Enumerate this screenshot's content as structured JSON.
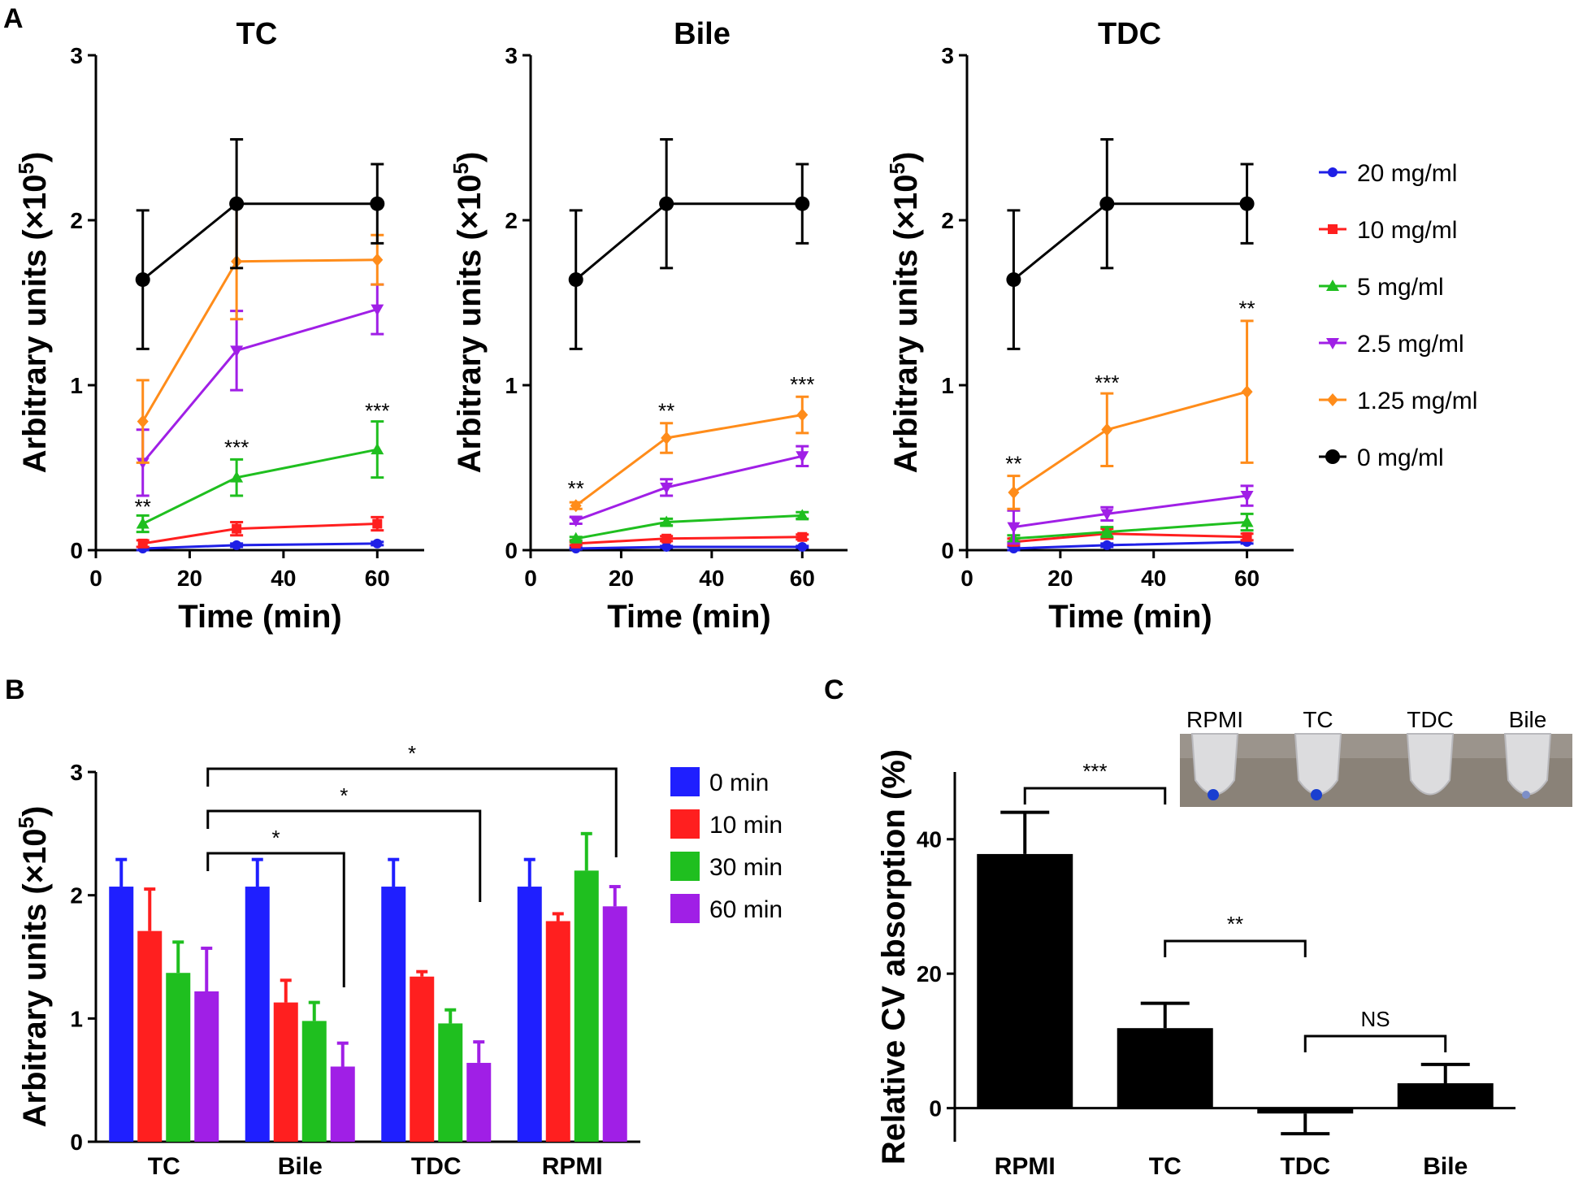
{
  "panels": {
    "a": "A",
    "b": "B",
    "c": "C"
  },
  "colors": {
    "20 mg/ml": "#1f1fe6",
    "10 mg/ml": "#ff1f1f",
    "5 mg/ml": "#1fbf1f",
    "2.5 mg/ml": "#a01fe6",
    "1.25 mg/ml": "#ff8c1a",
    "0 mg/ml": "#000000",
    "0 min": "#1f1fff",
    "10 min": "#ff1f1f",
    "30 min": "#1fbf1f",
    "60 min": "#a01fe6"
  },
  "chart_data": [
    {
      "type": "line",
      "title": "TC",
      "xlabel": "Time (min)",
      "ylabel": "Arbitrary units (×10⁵)",
      "ylabel_main": "Arbitrary units (×10",
      "ylabel_sup": "5",
      "ylabel_close": ")",
      "xlim": [
        0,
        70
      ],
      "ylim": [
        0,
        3
      ],
      "xticks": [
        "0",
        "20",
        "40",
        "60"
      ],
      "yticks": [
        "0",
        "1",
        "2",
        "3"
      ],
      "x": [
        10,
        30,
        60
      ],
      "series": [
        {
          "name": "20 mg/ml",
          "values": [
            0.01,
            0.03,
            0.04
          ],
          "err": [
            0.01,
            0.01,
            0.01
          ],
          "marker": "circle"
        },
        {
          "name": "10 mg/ml",
          "values": [
            0.04,
            0.13,
            0.16
          ],
          "err": [
            0.02,
            0.04,
            0.04
          ],
          "marker": "square"
        },
        {
          "name": "5 mg/ml",
          "values": [
            0.16,
            0.44,
            0.61
          ],
          "err": [
            0.05,
            0.11,
            0.17
          ],
          "marker": "triangle-up"
        },
        {
          "name": "2.5 mg/ml",
          "values": [
            0.53,
            1.21,
            1.46
          ],
          "err": [
            0.2,
            0.24,
            0.15
          ],
          "marker": "triangle-down"
        },
        {
          "name": "1.25 mg/ml",
          "values": [
            0.78,
            1.75,
            1.76
          ],
          "err": [
            0.25,
            0.35,
            0.15
          ],
          "marker": "diamond"
        },
        {
          "name": "0 mg/ml",
          "values": [
            1.64,
            2.1,
            2.1
          ],
          "err": [
            0.42,
            0.39,
            0.24
          ],
          "marker": "circle-big"
        }
      ],
      "annotations": [
        {
          "text": "**",
          "x": 10,
          "y": 0.22
        },
        {
          "text": "***",
          "x": 30,
          "y": 0.58
        },
        {
          "text": "***",
          "x": 60,
          "y": 0.8
        }
      ]
    },
    {
      "type": "line",
      "title": "Bile",
      "xlabel": "Time (min)",
      "ylabel": "Arbitrary units (×10⁵)",
      "ylabel_main": "Arbitrary units (×10",
      "ylabel_sup": "5",
      "ylabel_close": ")",
      "xlim": [
        0,
        70
      ],
      "ylim": [
        0,
        3
      ],
      "xticks": [
        "0",
        "20",
        "40",
        "60"
      ],
      "yticks": [
        "0",
        "1",
        "2",
        "3"
      ],
      "x": [
        10,
        30,
        60
      ],
      "series": [
        {
          "name": "20 mg/ml",
          "values": [
            0.01,
            0.02,
            0.02
          ],
          "err": [
            0.005,
            0.005,
            0.005
          ],
          "marker": "circle"
        },
        {
          "name": "10 mg/ml",
          "values": [
            0.04,
            0.07,
            0.08
          ],
          "err": [
            0.01,
            0.015,
            0.015
          ],
          "marker": "square"
        },
        {
          "name": "5 mg/ml",
          "values": [
            0.07,
            0.17,
            0.21
          ],
          "err": [
            0.01,
            0.02,
            0.02
          ],
          "marker": "triangle-up"
        },
        {
          "name": "2.5 mg/ml",
          "values": [
            0.18,
            0.38,
            0.57
          ],
          "err": [
            0.02,
            0.05,
            0.06
          ],
          "marker": "triangle-down"
        },
        {
          "name": "1.25 mg/ml",
          "values": [
            0.27,
            0.68,
            0.82
          ],
          "err": [
            0.02,
            0.09,
            0.11
          ],
          "marker": "diamond"
        },
        {
          "name": "0 mg/ml",
          "values": [
            1.64,
            2.1,
            2.1
          ],
          "err": [
            0.42,
            0.39,
            0.24
          ],
          "marker": "circle-big"
        }
      ],
      "annotations": [
        {
          "text": "**",
          "x": 10,
          "y": 0.33
        },
        {
          "text": "**",
          "x": 30,
          "y": 0.8
        },
        {
          "text": "***",
          "x": 60,
          "y": 0.96
        }
      ]
    },
    {
      "type": "line",
      "title": "TDC",
      "xlabel": "Time (min)",
      "ylabel": "Arbitrary units (×10⁵)",
      "ylabel_main": "Arbitrary units (×10",
      "ylabel_sup": "5",
      "ylabel_close": ")",
      "xlim": [
        0,
        70
      ],
      "ylim": [
        0,
        3
      ],
      "xticks": [
        "0",
        "20",
        "40",
        "60"
      ],
      "yticks": [
        "0",
        "1",
        "2",
        "3"
      ],
      "x": [
        10,
        30,
        60
      ],
      "series": [
        {
          "name": "20 mg/ml",
          "values": [
            0.01,
            0.03,
            0.05
          ],
          "err": [
            0.01,
            0.01,
            0.01
          ],
          "marker": "circle"
        },
        {
          "name": "10 mg/ml",
          "values": [
            0.05,
            0.1,
            0.08
          ],
          "err": [
            0.02,
            0.03,
            0.02
          ],
          "marker": "square"
        },
        {
          "name": "5 mg/ml",
          "values": [
            0.07,
            0.11,
            0.17
          ],
          "err": [
            0.02,
            0.03,
            0.05
          ],
          "marker": "triangle-up"
        },
        {
          "name": "2.5 mg/ml",
          "values": [
            0.14,
            0.22,
            0.33
          ],
          "err": [
            0.1,
            0.04,
            0.06
          ],
          "marker": "triangle-down"
        },
        {
          "name": "1.25 mg/ml",
          "values": [
            0.35,
            0.73,
            0.96
          ],
          "err": [
            0.1,
            0.22,
            0.43
          ],
          "marker": "diamond"
        },
        {
          "name": "0 mg/ml",
          "values": [
            1.64,
            2.1,
            2.1
          ],
          "err": [
            0.42,
            0.39,
            0.24
          ],
          "marker": "circle-big"
        }
      ],
      "annotations": [
        {
          "text": "**",
          "x": 10,
          "y": 0.48
        },
        {
          "text": "***",
          "x": 30,
          "y": 0.97
        },
        {
          "text": "**",
          "x": 60,
          "y": 1.42
        }
      ]
    },
    {
      "type": "bar",
      "ylabel": "Arbitrary units (×10⁵)",
      "ylabel_main": "Arbitrary units (×10",
      "ylabel_sup": "5",
      "ylabel_close": ")",
      "ylim": [
        0,
        3
      ],
      "yticks": [
        "0",
        "1",
        "2",
        "3"
      ],
      "categories": [
        "TC",
        "Bile",
        "TDC",
        "RPMI"
      ],
      "series": [
        {
          "name": "0 min",
          "values": [
            2.07,
            2.07,
            2.07,
            2.07
          ],
          "err": [
            0.22,
            0.22,
            0.22,
            0.22
          ]
        },
        {
          "name": "10 min",
          "values": [
            1.71,
            1.13,
            1.34,
            1.79
          ],
          "err": [
            0.34,
            0.18,
            0.04,
            0.06
          ]
        },
        {
          "name": "30 min",
          "values": [
            1.37,
            0.98,
            0.96,
            2.2
          ],
          "err": [
            0.25,
            0.15,
            0.11,
            0.3
          ]
        },
        {
          "name": "60 min",
          "values": [
            1.22,
            0.61,
            0.64,
            1.91
          ],
          "err": [
            0.35,
            0.19,
            0.17,
            0.16
          ]
        }
      ],
      "significance": [
        {
          "from": "TC",
          "to": "Bile",
          "text": "*"
        },
        {
          "from": "TC",
          "to": "TDC",
          "text": "*"
        },
        {
          "from": "TC",
          "to": "RPMI",
          "text": "*"
        }
      ]
    },
    {
      "type": "bar",
      "ylabel": "Relative CV absorption  (%)",
      "ylim": [
        -5,
        50
      ],
      "yticks": [
        "0",
        "20",
        "40"
      ],
      "categories": [
        "RPMI",
        "TC",
        "TDC",
        "Bile"
      ],
      "values": [
        37.8,
        11.9,
        -0.8,
        3.7
      ],
      "err": [
        6.2,
        3.7,
        3.0,
        2.8
      ],
      "significance": [
        {
          "from": "RPMI",
          "to": "TC",
          "text": "***"
        },
        {
          "from": "TC",
          "to": "TDC",
          "text": "**"
        },
        {
          "from": "TDC",
          "to": "Bile",
          "text": "NS"
        }
      ],
      "inset_labels": [
        "RPMI",
        "TC",
        "TDC",
        "Bile"
      ]
    }
  ]
}
